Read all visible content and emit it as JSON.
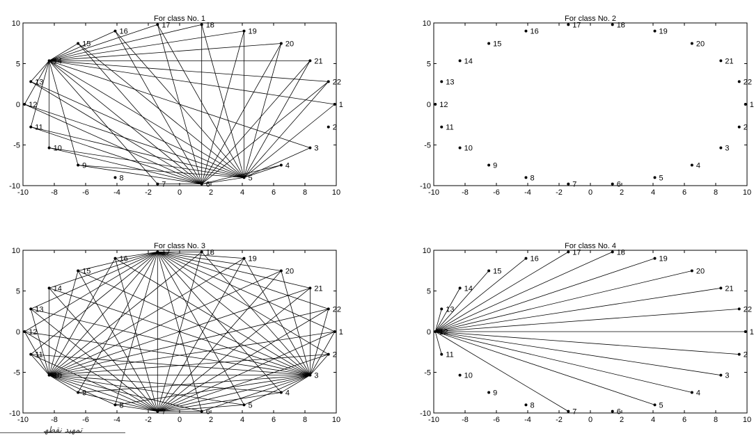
{
  "figure": {
    "watermark": "ﺗﻤﮭﯿﺪ ﻧﻘﻄﮫ"
  },
  "chart_data": [
    {
      "type": "scatter",
      "title": "For class No. 1",
      "xlim": [
        -10,
        10
      ],
      "ylim": [
        -10,
        10
      ],
      "xticks": [
        -10,
        -8,
        -6,
        -4,
        -2,
        0,
        2,
        4,
        6,
        8,
        10
      ],
      "yticks": [
        -10,
        -5,
        0,
        5,
        10
      ],
      "grid": false,
      "nodes": {
        "ids": [
          1,
          2,
          3,
          4,
          5,
          6,
          7,
          8,
          9,
          10,
          11,
          12,
          13,
          14,
          15,
          16,
          17,
          18,
          19,
          20,
          21,
          22
        ]
      },
      "edges": [
        [
          14,
          5
        ],
        [
          14,
          6
        ],
        [
          14,
          7
        ],
        [
          14,
          10
        ],
        [
          14,
          11
        ],
        [
          14,
          12
        ],
        [
          14,
          13
        ],
        [
          14,
          1
        ],
        [
          14,
          22
        ],
        [
          14,
          21
        ],
        [
          14,
          20
        ],
        [
          14,
          19
        ],
        [
          14,
          18
        ],
        [
          14,
          17
        ],
        [
          14,
          16
        ],
        [
          14,
          15
        ],
        [
          14,
          9
        ],
        [
          14,
          3
        ],
        [
          5,
          9
        ],
        [
          5,
          10
        ],
        [
          5,
          11
        ],
        [
          5,
          12
        ],
        [
          5,
          13
        ],
        [
          5,
          15
        ],
        [
          5,
          16
        ],
        [
          5,
          17
        ],
        [
          5,
          18
        ],
        [
          5,
          19
        ],
        [
          5,
          20
        ],
        [
          5,
          21
        ],
        [
          5,
          22
        ],
        [
          5,
          3
        ],
        [
          5,
          4
        ],
        [
          5,
          1
        ],
        [
          6,
          11
        ],
        [
          6,
          12
        ],
        [
          6,
          13
        ],
        [
          6,
          10
        ],
        [
          6,
          9
        ],
        [
          6,
          15
        ],
        [
          6,
          16
        ],
        [
          6,
          17
        ],
        [
          6,
          18
        ],
        [
          6,
          19
        ],
        [
          6,
          20
        ],
        [
          6,
          21
        ],
        [
          6,
          22
        ],
        [
          6,
          4
        ],
        [
          6,
          5
        ],
        [
          6,
          7
        ]
      ]
    },
    {
      "type": "scatter",
      "title": "For class No. 2",
      "xlim": [
        -10,
        10
      ],
      "ylim": [
        -10,
        10
      ],
      "xticks": [
        -10,
        -8,
        -6,
        -4,
        -2,
        0,
        2,
        4,
        6,
        8,
        10
      ],
      "yticks": [
        -10,
        -5,
        0,
        5,
        10
      ],
      "grid": false,
      "nodes": {
        "ids": [
          1,
          2,
          3,
          4,
          5,
          6,
          7,
          8,
          9,
          10,
          11,
          12,
          13,
          14,
          15,
          16,
          17,
          18,
          19,
          20,
          21,
          22
        ]
      },
      "edges": []
    },
    {
      "type": "scatter",
      "title": "For class No. 3",
      "xlim": [
        -10,
        10
      ],
      "ylim": [
        -10,
        10
      ],
      "xticks": [
        -10,
        -8,
        -6,
        -4,
        -2,
        0,
        2,
        4,
        6,
        8,
        10
      ],
      "yticks": [
        -10,
        -5,
        0,
        5,
        10
      ],
      "grid": false,
      "nodes": {
        "ids": [
          1,
          2,
          3,
          4,
          5,
          6,
          7,
          8,
          9,
          10,
          11,
          12,
          13,
          14,
          15,
          16,
          17,
          18,
          19,
          20,
          21,
          22
        ]
      },
      "edges": [
        [
          10,
          3
        ],
        [
          10,
          4
        ],
        [
          10,
          5
        ],
        [
          10,
          6
        ],
        [
          10,
          7
        ],
        [
          10,
          8
        ],
        [
          10,
          9
        ],
        [
          10,
          11
        ],
        [
          10,
          12
        ],
        [
          10,
          13
        ],
        [
          10,
          14
        ],
        [
          10,
          15
        ],
        [
          10,
          16
        ],
        [
          10,
          17
        ],
        [
          10,
          18
        ],
        [
          10,
          19
        ],
        [
          10,
          20
        ],
        [
          10,
          21
        ],
        [
          10,
          22
        ],
        [
          10,
          1
        ],
        [
          10,
          2
        ],
        [
          3,
          4
        ],
        [
          3,
          5
        ],
        [
          3,
          6
        ],
        [
          3,
          7
        ],
        [
          3,
          8
        ],
        [
          3,
          9
        ],
        [
          3,
          11
        ],
        [
          3,
          12
        ],
        [
          3,
          13
        ],
        [
          3,
          14
        ],
        [
          3,
          15
        ],
        [
          3,
          16
        ],
        [
          3,
          17
        ],
        [
          3,
          18
        ],
        [
          3,
          19
        ],
        [
          3,
          20
        ],
        [
          3,
          21
        ],
        [
          3,
          22
        ],
        [
          3,
          1
        ],
        [
          3,
          2
        ],
        [
          7,
          11
        ],
        [
          7,
          12
        ],
        [
          7,
          13
        ],
        [
          7,
          14
        ],
        [
          7,
          15
        ],
        [
          7,
          16
        ],
        [
          7,
          17
        ],
        [
          7,
          18
        ],
        [
          7,
          19
        ],
        [
          7,
          20
        ],
        [
          7,
          21
        ],
        [
          7,
          22
        ],
        [
          7,
          1
        ],
        [
          7,
          2
        ],
        [
          7,
          4
        ],
        [
          7,
          5
        ],
        [
          7,
          6
        ],
        [
          7,
          8
        ],
        [
          7,
          9
        ],
        [
          17,
          11
        ],
        [
          17,
          12
        ],
        [
          17,
          13
        ],
        [
          17,
          14
        ],
        [
          17,
          15
        ],
        [
          17,
          16
        ],
        [
          17,
          18
        ],
        [
          17,
          19
        ],
        [
          17,
          20
        ],
        [
          17,
          21
        ],
        [
          17,
          22
        ],
        [
          17,
          1
        ],
        [
          17,
          2
        ],
        [
          17,
          4
        ],
        [
          17,
          5
        ],
        [
          17,
          6
        ],
        [
          17,
          8
        ],
        [
          17,
          9
        ]
      ]
    },
    {
      "type": "scatter",
      "title": "For class No. 4",
      "xlim": [
        -10,
        10
      ],
      "ylim": [
        -10,
        10
      ],
      "xticks": [
        -10,
        -8,
        -6,
        -4,
        -2,
        0,
        2,
        4,
        6,
        8,
        10
      ],
      "yticks": [
        -10,
        -5,
        0,
        5,
        10
      ],
      "grid": false,
      "nodes": {
        "ids": [
          1,
          2,
          3,
          4,
          5,
          6,
          7,
          8,
          9,
          10,
          11,
          12,
          13,
          14,
          15,
          16,
          17,
          18,
          19,
          20,
          21,
          22
        ]
      },
      "edges": [
        [
          12,
          1
        ],
        [
          12,
          2
        ],
        [
          12,
          3
        ],
        [
          12,
          4
        ],
        [
          12,
          5
        ],
        [
          12,
          7
        ],
        [
          12,
          11
        ],
        [
          12,
          13
        ],
        [
          12,
          14
        ],
        [
          12,
          15
        ],
        [
          12,
          16
        ],
        [
          12,
          17
        ],
        [
          12,
          18
        ],
        [
          12,
          19
        ],
        [
          12,
          20
        ],
        [
          12,
          21
        ],
        [
          12,
          22
        ]
      ]
    }
  ]
}
